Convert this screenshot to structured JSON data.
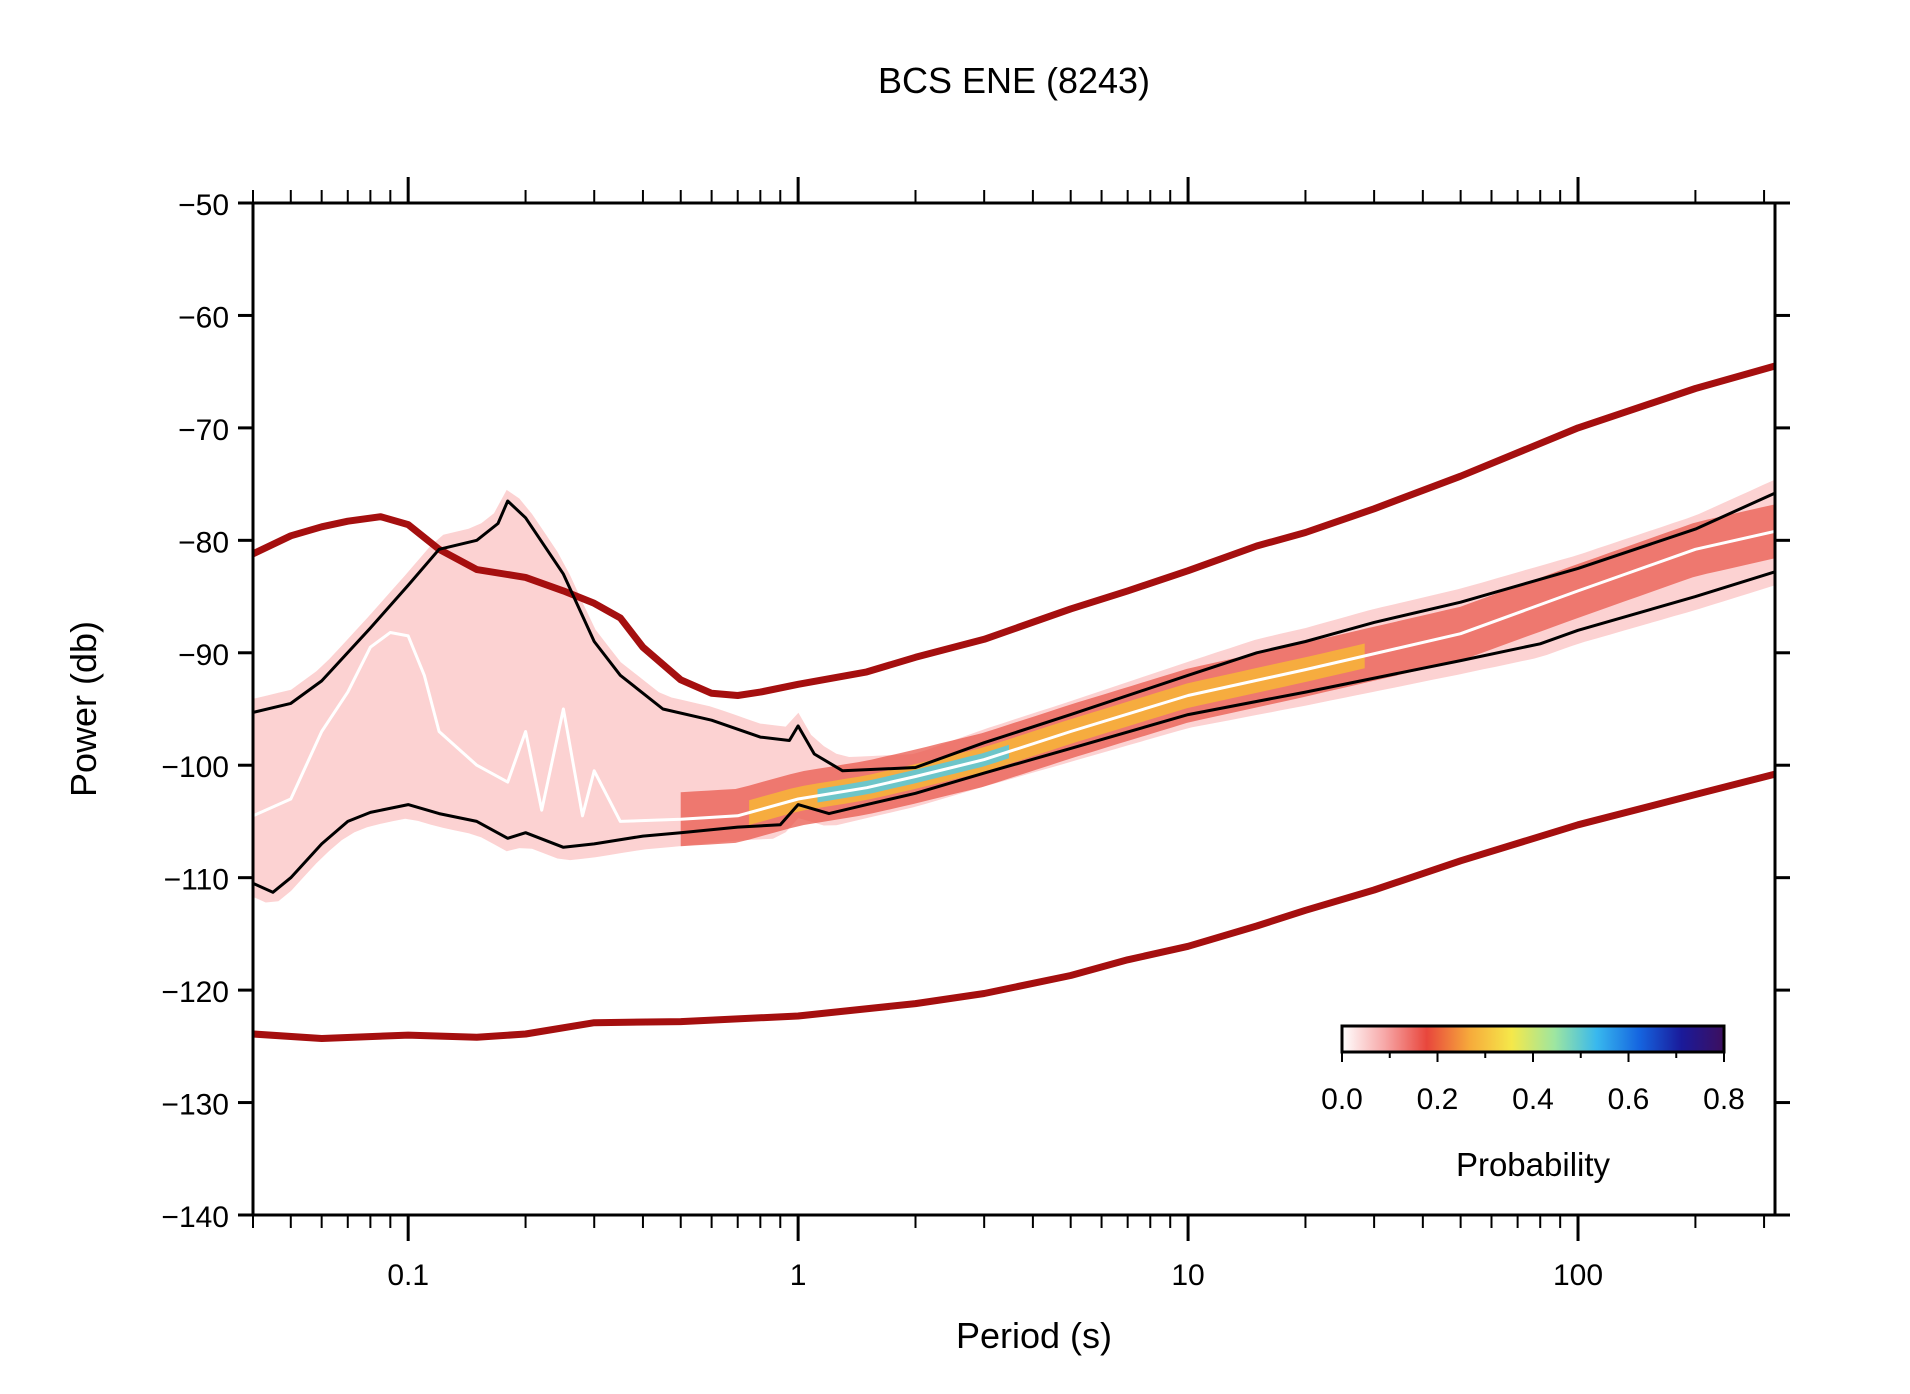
{
  "chart_data": {
    "type": "line",
    "title": "BCS ENE (8243)",
    "xlabel": "Period (s)",
    "ylabel": "Power (db)",
    "x_scale": "log",
    "xlim": [
      0.04,
      320
    ],
    "ylim": [
      -140,
      -50
    ],
    "x_ticks": [
      0.1,
      1,
      10,
      100
    ],
    "x_tick_labels": [
      "0.1",
      "1",
      "10",
      "100"
    ],
    "y_ticks": [
      -50,
      -60,
      -70,
      -80,
      -90,
      -100,
      -110,
      -120,
      -130,
      -140
    ],
    "y_tick_labels": [
      "−50",
      "−60",
      "−70",
      "−80",
      "−90",
      "−100",
      "−110",
      "−120",
      "−130",
      "−140"
    ],
    "grid": false,
    "colorbar": {
      "label": "Probability",
      "range": [
        0.0,
        0.8
      ],
      "ticks": [
        "0.0",
        "0.2",
        "0.4",
        "0.6",
        "0.8"
      ],
      "placement": "bottom-right",
      "colors": [
        "#ffffff",
        "#f7a8a8",
        "#e8463c",
        "#f6a93b",
        "#f5e84a",
        "#9ee6a0",
        "#38b8ee",
        "#1565e0",
        "#1a1a9a",
        "#3d0f5e"
      ]
    },
    "series": [
      {
        "role": "nhnm",
        "color": "#a50f0f",
        "points": [
          [
            0.04,
            -81.2
          ],
          [
            0.05,
            -79.6
          ],
          [
            0.06,
            -78.8
          ],
          [
            0.07,
            -78.3
          ],
          [
            0.085,
            -77.9
          ],
          [
            0.1,
            -78.6
          ],
          [
            0.12,
            -80.8
          ],
          [
            0.15,
            -82.6
          ],
          [
            0.2,
            -83.3
          ],
          [
            0.25,
            -84.5
          ],
          [
            0.3,
            -85.6
          ],
          [
            0.35,
            -86.9
          ],
          [
            0.4,
            -89.5
          ],
          [
            0.5,
            -92.4
          ],
          [
            0.6,
            -93.6
          ],
          [
            0.7,
            -93.8
          ],
          [
            0.8,
            -93.5
          ],
          [
            1.0,
            -92.8
          ],
          [
            1.5,
            -91.7
          ],
          [
            2.0,
            -90.4
          ],
          [
            3.0,
            -88.8
          ],
          [
            5.0,
            -86.1
          ],
          [
            7.0,
            -84.5
          ],
          [
            10.0,
            -82.7
          ],
          [
            15.0,
            -80.5
          ],
          [
            20.0,
            -79.3
          ],
          [
            30.0,
            -77.2
          ],
          [
            50.0,
            -74.3
          ],
          [
            100.0,
            -70.0
          ],
          [
            200.0,
            -66.5
          ],
          [
            320.0,
            -64.5
          ]
        ]
      },
      {
        "role": "nlnm",
        "color": "#a50f0f",
        "points": [
          [
            0.04,
            -123.9
          ],
          [
            0.06,
            -124.3
          ],
          [
            0.1,
            -124.0
          ],
          [
            0.15,
            -124.2
          ],
          [
            0.2,
            -123.9
          ],
          [
            0.3,
            -122.9
          ],
          [
            0.5,
            -122.8
          ],
          [
            1.0,
            -122.3
          ],
          [
            2.0,
            -121.2
          ],
          [
            3.0,
            -120.3
          ],
          [
            5.0,
            -118.7
          ],
          [
            7.0,
            -117.3
          ],
          [
            10.0,
            -116.1
          ],
          [
            15.0,
            -114.3
          ],
          [
            20.0,
            -112.9
          ],
          [
            30.0,
            -111.1
          ],
          [
            50.0,
            -108.5
          ],
          [
            100.0,
            -105.3
          ],
          [
            200.0,
            -102.6
          ],
          [
            320.0,
            -100.8
          ]
        ]
      },
      {
        "role": "upper_percentile",
        "color": "#000000",
        "points": [
          [
            0.04,
            -95.3
          ],
          [
            0.05,
            -94.5
          ],
          [
            0.06,
            -92.5
          ],
          [
            0.08,
            -87.8
          ],
          [
            0.1,
            -84.0
          ],
          [
            0.12,
            -80.8
          ],
          [
            0.15,
            -80.0
          ],
          [
            0.17,
            -78.5
          ],
          [
            0.18,
            -76.5
          ],
          [
            0.2,
            -78.0
          ],
          [
            0.25,
            -83.0
          ],
          [
            0.3,
            -89.0
          ],
          [
            0.35,
            -92.0
          ],
          [
            0.45,
            -95.0
          ],
          [
            0.6,
            -96.0
          ],
          [
            0.8,
            -97.5
          ],
          [
            0.95,
            -97.8
          ],
          [
            1.0,
            -96.5
          ],
          [
            1.1,
            -99.0
          ],
          [
            1.3,
            -100.5
          ],
          [
            2.0,
            -100.2
          ],
          [
            3.0,
            -98.0
          ],
          [
            5.0,
            -95.5
          ],
          [
            10.0,
            -92.0
          ],
          [
            15.0,
            -90.0
          ],
          [
            20.0,
            -89.0
          ],
          [
            30.0,
            -87.3
          ],
          [
            50.0,
            -85.5
          ],
          [
            100.0,
            -82.5
          ],
          [
            200.0,
            -79.0
          ],
          [
            320.0,
            -75.8
          ]
        ]
      },
      {
        "role": "lower_percentile",
        "color": "#000000",
        "points": [
          [
            0.04,
            -110.5
          ],
          [
            0.045,
            -111.3
          ],
          [
            0.05,
            -110.0
          ],
          [
            0.06,
            -107.0
          ],
          [
            0.07,
            -105.0
          ],
          [
            0.08,
            -104.2
          ],
          [
            0.1,
            -103.5
          ],
          [
            0.12,
            -104.3
          ],
          [
            0.15,
            -105.0
          ],
          [
            0.18,
            -106.5
          ],
          [
            0.2,
            -106.0
          ],
          [
            0.25,
            -107.3
          ],
          [
            0.3,
            -107.0
          ],
          [
            0.4,
            -106.3
          ],
          [
            0.5,
            -106.0
          ],
          [
            0.7,
            -105.5
          ],
          [
            0.9,
            -105.3
          ],
          [
            1.0,
            -103.5
          ],
          [
            1.2,
            -104.3
          ],
          [
            1.5,
            -103.5
          ],
          [
            2.0,
            -102.5
          ],
          [
            3.0,
            -100.7
          ],
          [
            5.0,
            -98.5
          ],
          [
            10.0,
            -95.5
          ],
          [
            20.0,
            -93.5
          ],
          [
            50.0,
            -90.7
          ],
          [
            80.0,
            -89.2
          ],
          [
            100.0,
            -88.0
          ],
          [
            200.0,
            -85.0
          ],
          [
            320.0,
            -82.8
          ]
        ]
      },
      {
        "role": "mode",
        "color": "#ffffff",
        "points": [
          [
            0.04,
            -104.5
          ],
          [
            0.05,
            -103.0
          ],
          [
            0.06,
            -97.0
          ],
          [
            0.07,
            -93.5
          ],
          [
            0.08,
            -89.5
          ],
          [
            0.09,
            -88.2
          ],
          [
            0.1,
            -88.5
          ],
          [
            0.11,
            -92.0
          ],
          [
            0.12,
            -97.0
          ],
          [
            0.15,
            -100.0
          ],
          [
            0.18,
            -101.5
          ],
          [
            0.2,
            -97.0
          ],
          [
            0.22,
            -104.0
          ],
          [
            0.25,
            -95.0
          ],
          [
            0.28,
            -104.5
          ],
          [
            0.3,
            -100.5
          ],
          [
            0.35,
            -105.0
          ],
          [
            0.5,
            -104.8
          ],
          [
            0.7,
            -104.5
          ],
          [
            1.0,
            -103.0
          ],
          [
            1.5,
            -102.0
          ],
          [
            2.0,
            -101.0
          ],
          [
            3.0,
            -99.5
          ],
          [
            5.0,
            -97.0
          ],
          [
            10.0,
            -93.8
          ],
          [
            20.0,
            -91.5
          ],
          [
            50.0,
            -88.3
          ],
          [
            100.0,
            -84.5
          ],
          [
            200.0,
            -80.8
          ],
          [
            320.0,
            -79.2
          ]
        ]
      }
    ]
  }
}
